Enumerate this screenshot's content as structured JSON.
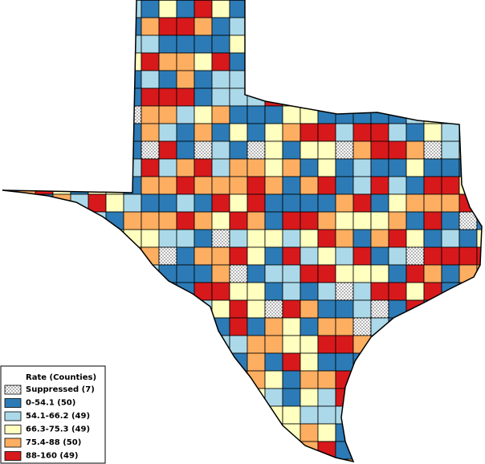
{
  "legend": {
    "title": "Rate (Counties)",
    "items": [
      {
        "label": "Suppressed (7)",
        "pattern": "dots"
      },
      {
        "label": "0-54.1 (50)",
        "color": "#2c7bb6"
      },
      {
        "label": "54.1-66.2 (49)",
        "color": "#abd9e9"
      },
      {
        "label": "66.3-75.3 (49)",
        "color": "#ffffbf"
      },
      {
        "label": "75.4-88 (50)",
        "color": "#fdae61"
      },
      {
        "label": "88-160 (49)",
        "color": "#d7191c"
      }
    ]
  }
}
